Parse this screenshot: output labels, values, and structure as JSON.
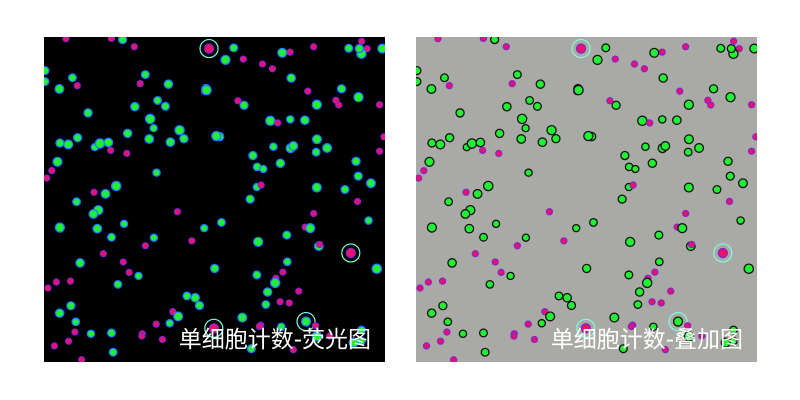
{
  "panels": [
    {
      "caption": "单细胞计数-荧光图",
      "background": "#000000"
    },
    {
      "caption": "单细胞计数-叠加图",
      "background": "#a9a9a5"
    }
  ],
  "colors": {
    "live_cell": "#22ee33",
    "live_ring": "#1e7bff",
    "dead_cell": "#ee1166",
    "dead_ring": "#8822cc",
    "cluster_ring": "#7fffe0"
  }
}
